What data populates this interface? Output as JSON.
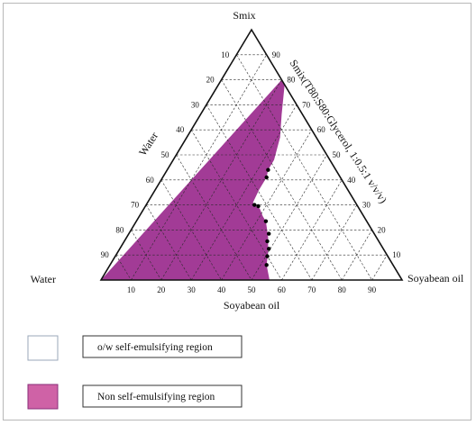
{
  "chart_data": {
    "type": "ternary",
    "vertices": {
      "top": "Smix",
      "left": "Water",
      "right": "Soyabean oil"
    },
    "axis_labels": {
      "left_edge": "Water",
      "right_edge": "Smix(T80:S80:Glycerol, 1:0.5:1 v/v/v)",
      "bottom_edge": "Soyabean oil"
    },
    "ticks": {
      "left_edge": [
        "10",
        "20",
        "30",
        "40",
        "50",
        "60",
        "70",
        "80",
        "90"
      ],
      "right_edge": [
        "90",
        "80",
        "70",
        "60",
        "50",
        "40",
        "30",
        "20",
        "10"
      ],
      "bottom_edge": [
        "10",
        "20",
        "30",
        "40",
        "50",
        "60",
        "70",
        "80",
        "90"
      ]
    },
    "grid": true,
    "regions": [
      {
        "name": "o/w self-emulsifying region",
        "color": "#ffffff"
      },
      {
        "name": "Non self-emulsifying region",
        "color": "#a23b96"
      }
    ],
    "boundary_points": [
      {
        "oil": 33.5,
        "smix": 44
      },
      {
        "oil": 34.5,
        "smix": 41
      },
      {
        "oil": 36,
        "smix": 30
      },
      {
        "oil": 37.5,
        "smix": 29.5
      },
      {
        "oil": 43,
        "smix": 23.5
      },
      {
        "oil": 46.5,
        "smix": 18.5
      },
      {
        "oil": 47.5,
        "smix": 15.5
      },
      {
        "oil": 49.5,
        "smix": 12.5
      },
      {
        "oil": 50.5,
        "smix": 9.5
      },
      {
        "oil": 52,
        "smix": 6
      }
    ],
    "boundary_curve": [
      {
        "oil": 22,
        "smix": 78
      },
      {
        "oil": 27,
        "smix": 66
      },
      {
        "oil": 31,
        "smix": 57
      },
      {
        "oil": 33.5,
        "smix": 48
      },
      {
        "oil": 33.5,
        "smix": 44
      },
      {
        "oil": 34.5,
        "smix": 41
      },
      {
        "oil": 34.5,
        "smix": 36
      },
      {
        "oil": 35,
        "smix": 31
      },
      {
        "oil": 36.5,
        "smix": 29.5
      },
      {
        "oil": 38.5,
        "smix": 28.5
      },
      {
        "oil": 41,
        "smix": 25.5
      },
      {
        "oil": 43,
        "smix": 23.5
      },
      {
        "oil": 45.5,
        "smix": 19.5
      },
      {
        "oil": 47,
        "smix": 17
      },
      {
        "oil": 48.5,
        "smix": 14
      },
      {
        "oil": 50,
        "smix": 11
      },
      {
        "oil": 51,
        "smix": 8.5
      },
      {
        "oil": 52,
        "smix": 6
      },
      {
        "oil": 56,
        "smix": 0
      }
    ]
  },
  "legend": [
    {
      "label": "o/w self-emulsifying  region",
      "color": "#ffffff"
    },
    {
      "label": "Non self-emulsifying region",
      "color": "#cf62a6"
    }
  ],
  "colors": {
    "region_fill": "#a23b96",
    "dashed_grid": "#2a2a2a",
    "frame": "#111111"
  }
}
